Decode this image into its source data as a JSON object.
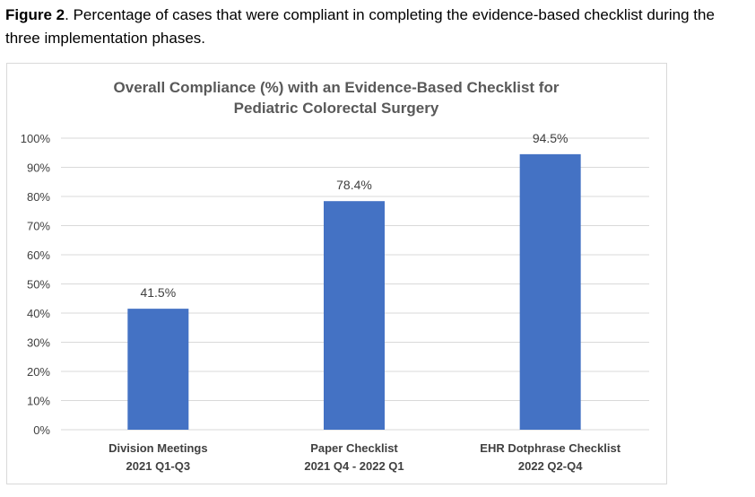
{
  "caption": {
    "label": "Figure 2",
    "text": ". Percentage of cases that were compliant in completing the evidence-based checklist during the three implementation phases."
  },
  "chart_data": {
    "type": "bar",
    "title_lines": [
      "Overall Compliance (%) with an Evidence-Based Checklist for",
      "Pediatric Colorectal Surgery"
    ],
    "categories": [
      [
        "Division Meetings",
        "2021 Q1-Q3"
      ],
      [
        "Paper Checklist",
        "2021 Q4 - 2022 Q1"
      ],
      [
        "EHR Dotphrase Checklist",
        "2022 Q2-Q4"
      ]
    ],
    "values": [
      41.5,
      78.4,
      94.5
    ],
    "data_labels": [
      "41.5%",
      "78.4%",
      "94.5%"
    ],
    "ylim": [
      0,
      100
    ],
    "yticks": [
      0,
      10,
      20,
      30,
      40,
      50,
      60,
      70,
      80,
      90,
      100
    ],
    "ytick_labels": [
      "0%",
      "10%",
      "20%",
      "30%",
      "40%",
      "50%",
      "60%",
      "70%",
      "80%",
      "90%",
      "100%"
    ],
    "grid": true,
    "legend": "none",
    "colors": {
      "bar": "#4472c4",
      "grid": "#d9d9d9"
    }
  }
}
